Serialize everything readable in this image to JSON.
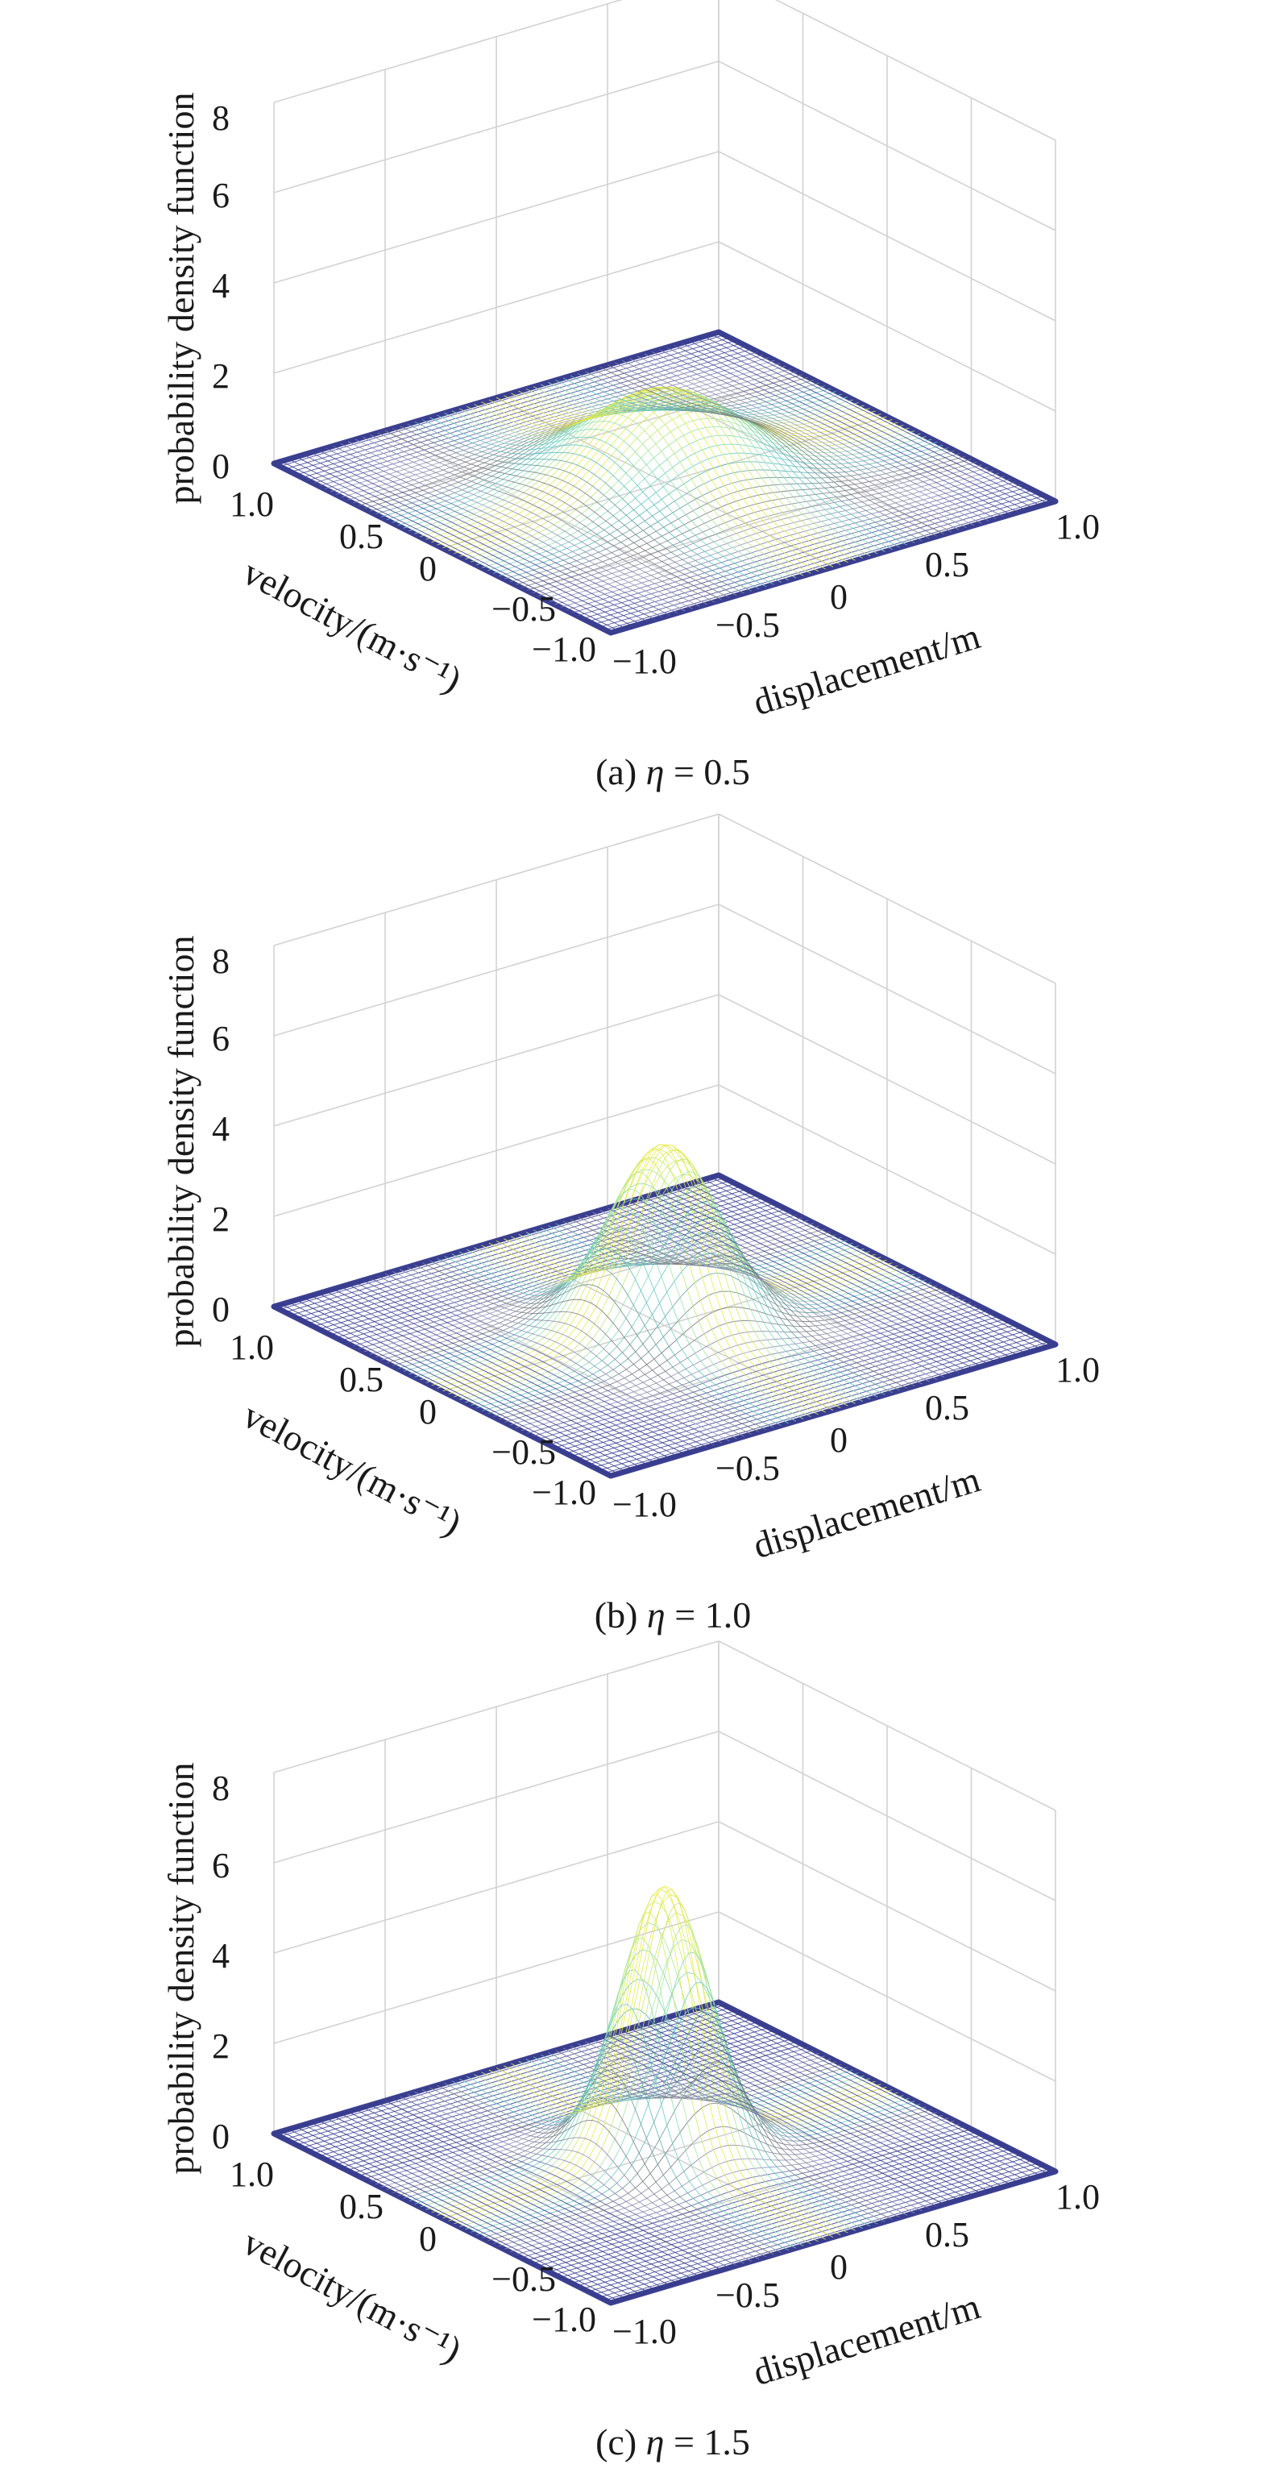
{
  "chart_data": [
    {
      "type": "surface",
      "caption_prefix": "(a) ",
      "caption_symbol": "η",
      "caption_value": " = 0.5",
      "eta": 0.5,
      "xlabel": "displacement/m",
      "ylabel": "velocity/(m·s⁻¹)",
      "zlabel": "probability density function",
      "xlim": [
        -1.0,
        1.0
      ],
      "ylim": [
        -1.0,
        1.0
      ],
      "zlim": [
        0,
        8
      ],
      "xticks": [
        "−1.0",
        "−0.5",
        "0",
        "0.5",
        "1.0"
      ],
      "yticks": [
        "−1.0",
        "−0.5",
        "0",
        "0.5",
        "1.0"
      ],
      "zticks": [
        "0",
        "2",
        "4",
        "6",
        "8"
      ],
      "peak_pdf": 2.0,
      "grid": true
    },
    {
      "type": "surface",
      "caption_prefix": "(b) ",
      "caption_symbol": "η",
      "caption_value": " = 1.0",
      "eta": 1.0,
      "xlabel": "displacement/m",
      "ylabel": "velocity/(m·s⁻¹)",
      "zlabel": "probability density function",
      "xlim": [
        -1.0,
        1.0
      ],
      "ylim": [
        -1.0,
        1.0
      ],
      "zlim": [
        0,
        8
      ],
      "xticks": [
        "−1.0",
        "−0.5",
        "0",
        "0.5",
        "1.0"
      ],
      "yticks": [
        "−1.0",
        "−0.5",
        "0",
        "0.5",
        "1.0"
      ],
      "zticks": [
        "0",
        "2",
        "4",
        "6",
        "8"
      ],
      "peak_pdf": 4.0,
      "grid": true
    },
    {
      "type": "surface",
      "caption_prefix": "(c) ",
      "caption_symbol": "η",
      "caption_value": " = 1.5",
      "eta": 1.5,
      "xlabel": "displacement/m",
      "ylabel": "velocity/(m·s⁻¹)",
      "zlabel": "probability density function",
      "xlim": [
        -1.0,
        1.0
      ],
      "ylim": [
        -1.0,
        1.0
      ],
      "zlim": [
        0,
        8
      ],
      "xticks": [
        "−1.0",
        "−0.5",
        "0",
        "0.5",
        "1.0"
      ],
      "yticks": [
        "−1.0",
        "−0.5",
        "0",
        "0.5",
        "1.0"
      ],
      "zticks": [
        "0",
        "2",
        "4",
        "6",
        "8"
      ],
      "peak_pdf": 5.9,
      "grid": true
    }
  ]
}
